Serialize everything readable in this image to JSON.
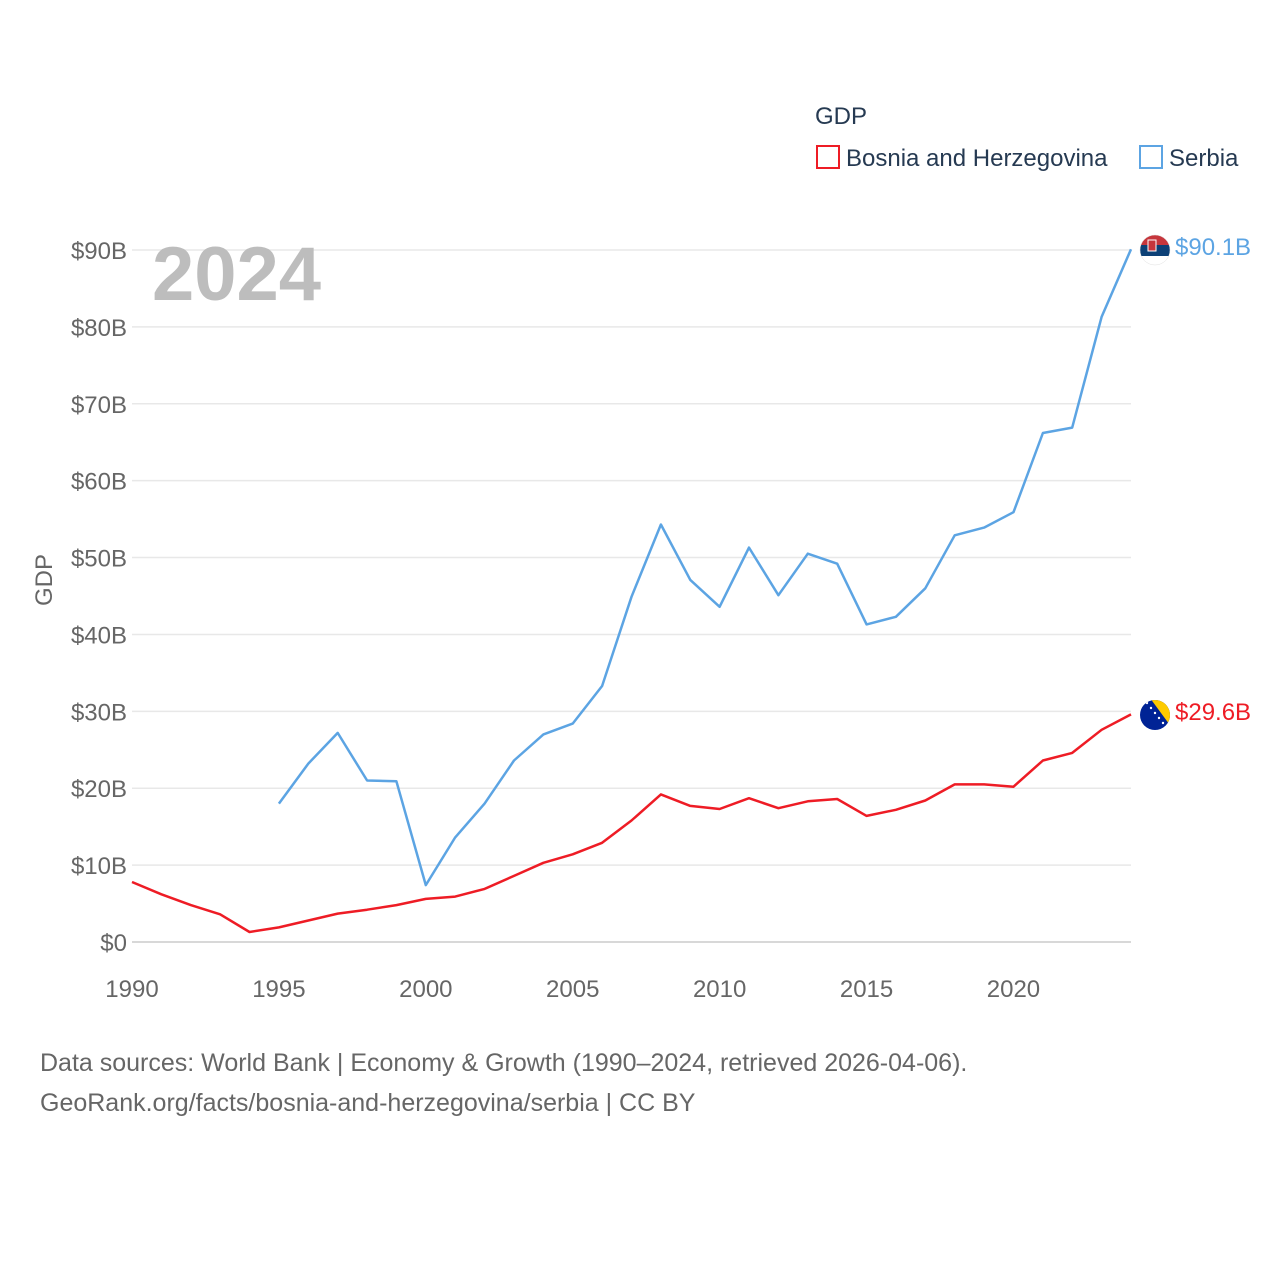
{
  "chart_data": {
    "type": "line",
    "ylabel": "GDP",
    "year_overlay": "2024",
    "legend": {
      "title": "GDP",
      "placement": "top-right",
      "items": [
        {
          "name": "Bosnia and Herzegovina",
          "color": "#ee1c25"
        },
        {
          "name": "Serbia",
          "color": "#5ca4e3"
        }
      ]
    },
    "x_ticks": [
      1990,
      1995,
      2000,
      2005,
      2010,
      2015,
      2020
    ],
    "xlim": [
      1990,
      2024
    ],
    "y_ticks": [
      {
        "value": 0,
        "label": "$0"
      },
      {
        "value": 10,
        "label": "$10B"
      },
      {
        "value": 20,
        "label": "$20B"
      },
      {
        "value": 30,
        "label": "$30B"
      },
      {
        "value": 40,
        "label": "$40B"
      },
      {
        "value": 50,
        "label": "$50B"
      },
      {
        "value": 60,
        "label": "$60B"
      },
      {
        "value": 70,
        "label": "$70B"
      },
      {
        "value": 80,
        "label": "$80B"
      },
      {
        "value": 90,
        "label": "$90B"
      }
    ],
    "ylim": [
      0,
      90
    ],
    "series": [
      {
        "name": "Bosnia and Herzegovina",
        "color": "#ee1c25",
        "end_label": "$29.6B",
        "flag_icon": "bosnia-flag-icon",
        "points": [
          [
            1990,
            7.8
          ],
          [
            1991,
            6.2
          ],
          [
            1992,
            4.8
          ],
          [
            1993,
            3.6
          ],
          [
            1994,
            1.3
          ],
          [
            1995,
            1.9
          ],
          [
            1996,
            2.8
          ],
          [
            1997,
            3.7
          ],
          [
            1998,
            4.2
          ],
          [
            1999,
            4.8
          ],
          [
            2000,
            5.6
          ],
          [
            2001,
            5.9
          ],
          [
            2002,
            6.9
          ],
          [
            2003,
            8.6
          ],
          [
            2004,
            10.3
          ],
          [
            2005,
            11.4
          ],
          [
            2006,
            12.9
          ],
          [
            2007,
            15.8
          ],
          [
            2008,
            19.2
          ],
          [
            2009,
            17.7
          ],
          [
            2010,
            17.3
          ],
          [
            2011,
            18.7
          ],
          [
            2012,
            17.4
          ],
          [
            2013,
            18.3
          ],
          [
            2014,
            18.6
          ],
          [
            2015,
            16.4
          ],
          [
            2016,
            17.2
          ],
          [
            2017,
            18.4
          ],
          [
            2018,
            20.5
          ],
          [
            2019,
            20.5
          ],
          [
            2020,
            20.2
          ],
          [
            2021,
            23.6
          ],
          [
            2022,
            24.6
          ],
          [
            2023,
            27.6
          ],
          [
            2024,
            29.6
          ]
        ]
      },
      {
        "name": "Serbia",
        "color": "#5ca4e3",
        "end_label": "$90.1B",
        "flag_icon": "serbia-flag-icon",
        "points": [
          [
            1995,
            18.0
          ],
          [
            1996,
            23.2
          ],
          [
            1997,
            27.2
          ],
          [
            1998,
            21.0
          ],
          [
            1999,
            20.9
          ],
          [
            2000,
            7.4
          ],
          [
            2001,
            13.6
          ],
          [
            2002,
            18.0
          ],
          [
            2003,
            23.6
          ],
          [
            2004,
            27.0
          ],
          [
            2005,
            28.4
          ],
          [
            2006,
            33.3
          ],
          [
            2007,
            44.9
          ],
          [
            2008,
            54.3
          ],
          [
            2009,
            47.1
          ],
          [
            2010,
            43.6
          ],
          [
            2011,
            51.3
          ],
          [
            2012,
            45.1
          ],
          [
            2013,
            50.5
          ],
          [
            2014,
            49.2
          ],
          [
            2015,
            41.3
          ],
          [
            2016,
            42.3
          ],
          [
            2017,
            46.0
          ],
          [
            2018,
            52.9
          ],
          [
            2019,
            53.9
          ],
          [
            2020,
            55.9
          ],
          [
            2021,
            66.2
          ],
          [
            2022,
            66.9
          ],
          [
            2023,
            81.3
          ],
          [
            2024,
            90.1
          ]
        ]
      }
    ]
  },
  "footer": {
    "line1": "Data sources: World Bank | Economy & Growth (1990–2024, retrieved 2026-04-06).",
    "line2": "GeoRank.org/facts/bosnia-and-herzegovina/serbia | CC BY"
  }
}
